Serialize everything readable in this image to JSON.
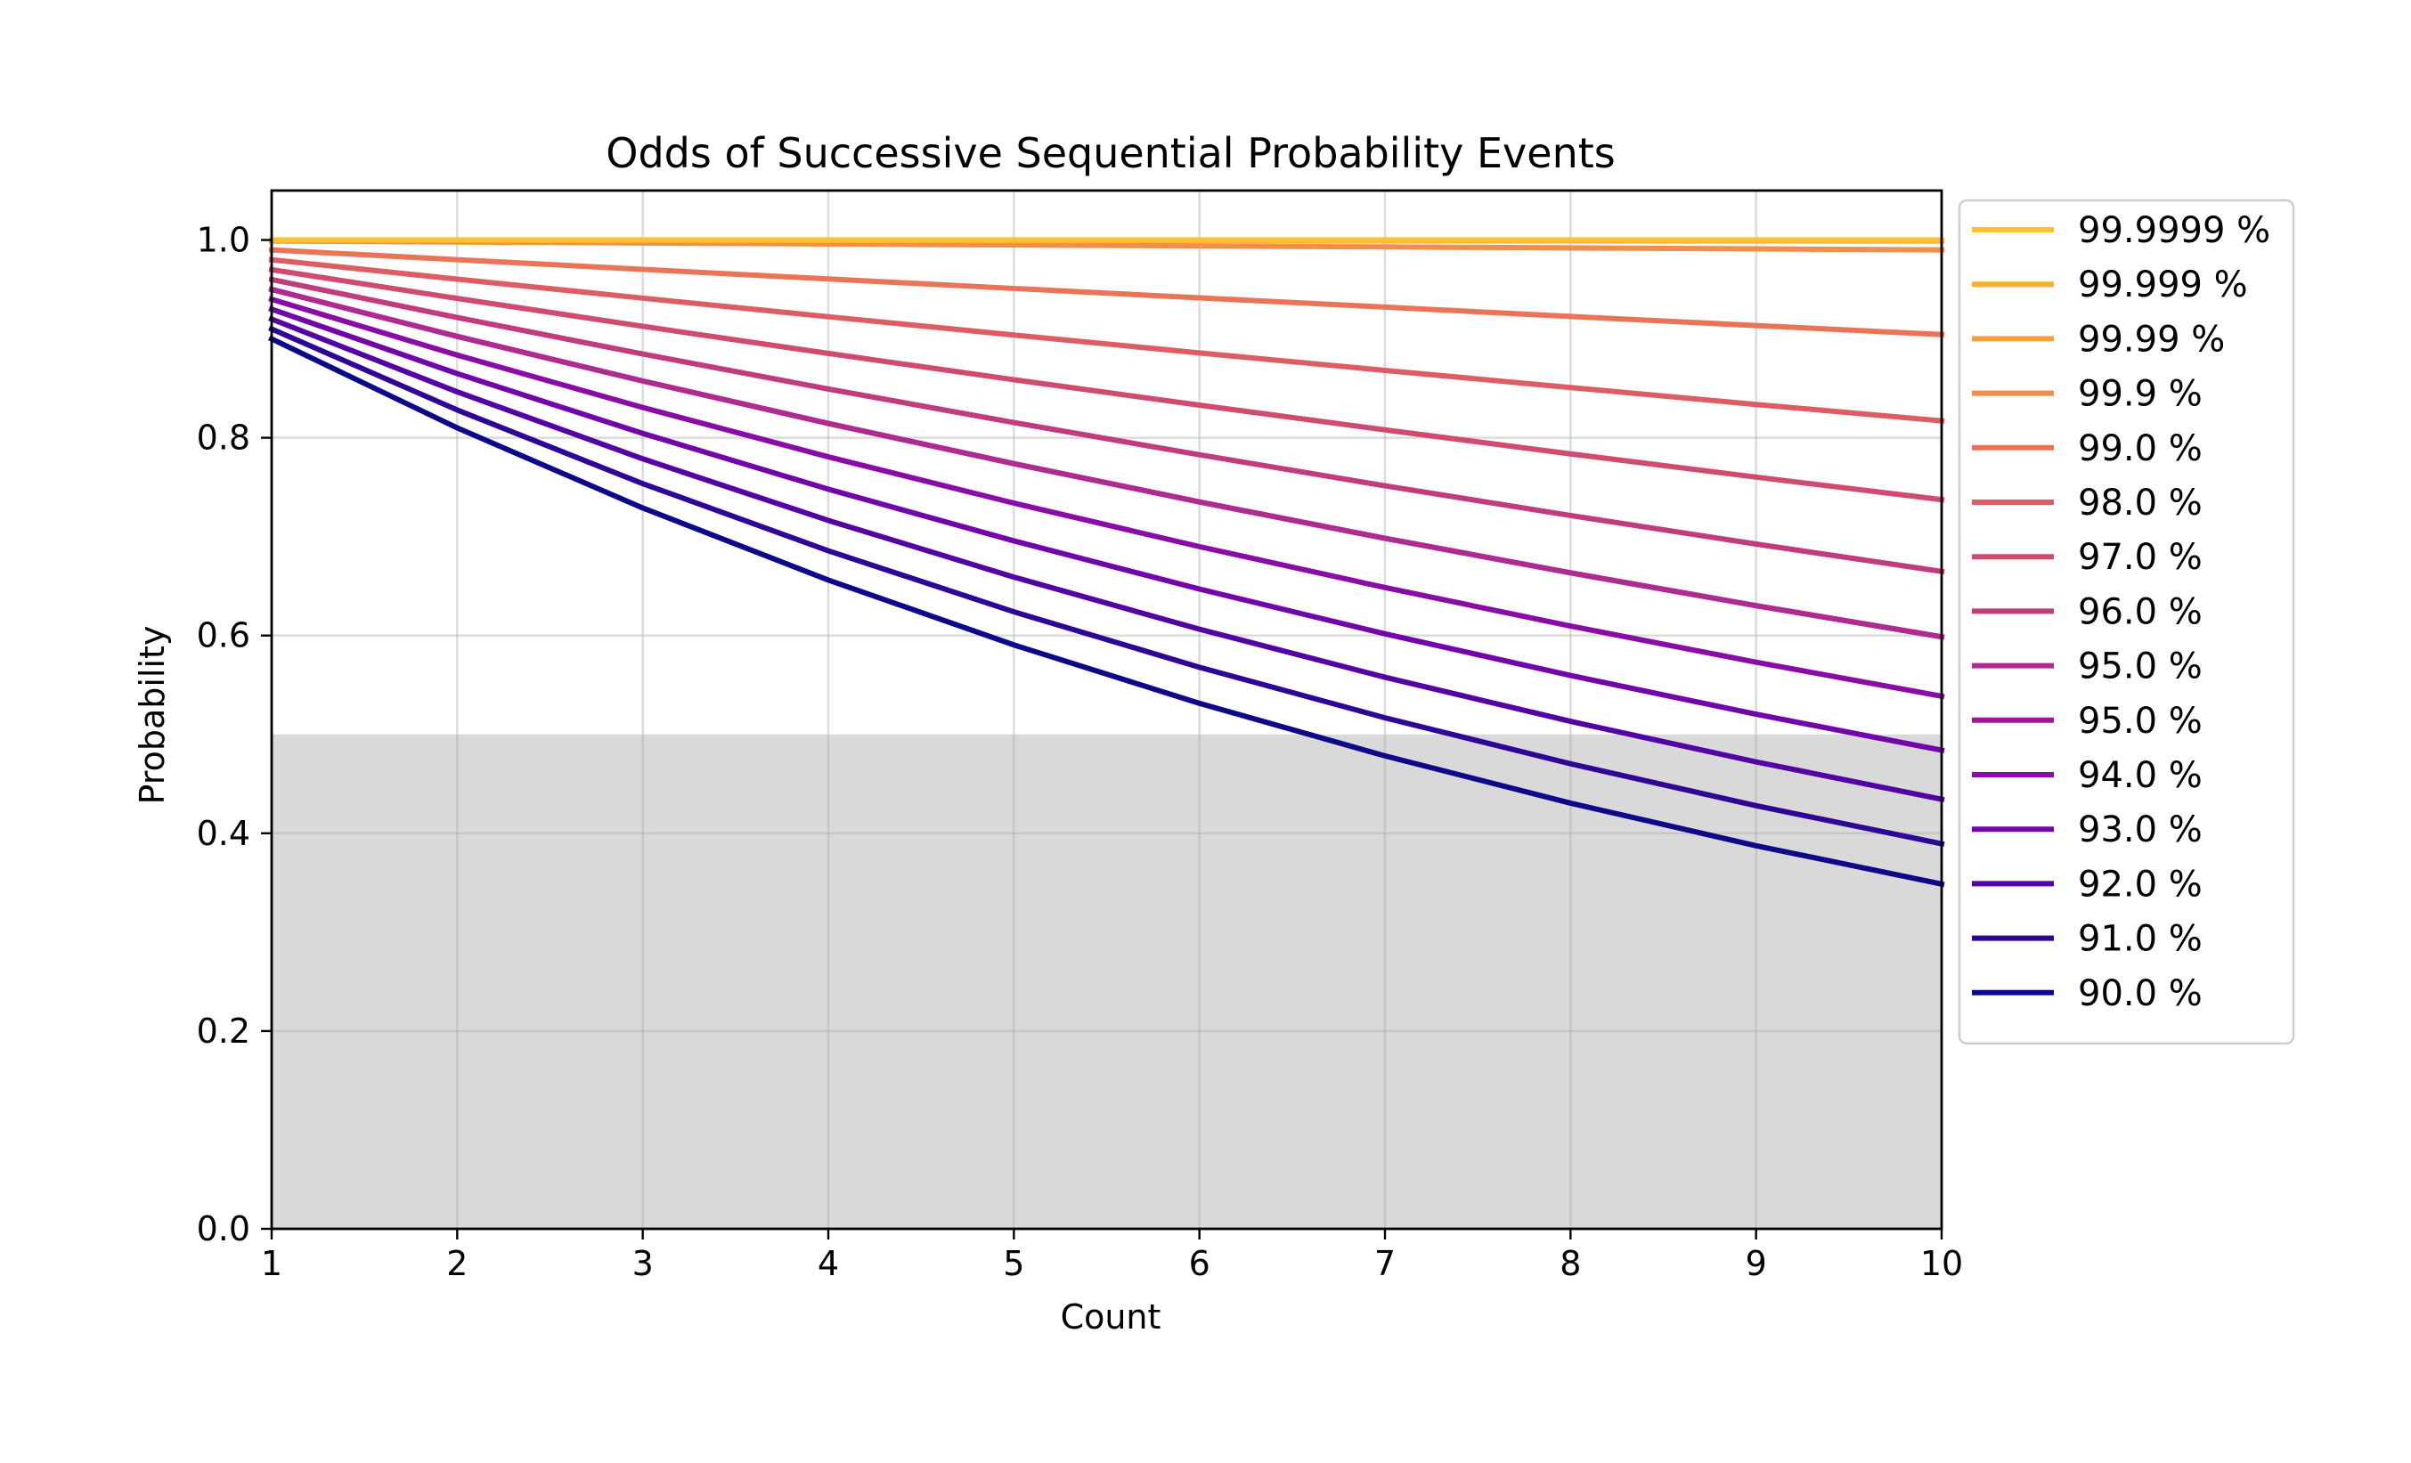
{
  "chart_data": {
    "type": "line",
    "title": "Odds of Successive Sequential Probability Events",
    "xlabel": "Count",
    "ylabel": "Probability",
    "xlim": [
      1,
      10
    ],
    "ylim": [
      0,
      1.05
    ],
    "x_ticks": [
      "1",
      "2",
      "3",
      "4",
      "5",
      "6",
      "7",
      "8",
      "9",
      "10"
    ],
    "y_ticks": [
      "0.0",
      "0.2",
      "0.4",
      "0.6",
      "0.8",
      "1.0"
    ],
    "grid": true,
    "legend_placement": "outside-right-top",
    "shaded_region": {
      "y_from": 0,
      "y_to": 0.5,
      "color": "#d9d9d9"
    },
    "x": [
      1,
      2,
      3,
      4,
      5,
      6,
      7,
      8,
      9,
      10
    ],
    "series": [
      {
        "name": "99.9999 %",
        "color": "#f9c22e",
        "values": [
          0.999999,
          0.999998,
          0.999997,
          0.999996,
          0.999995,
          0.999994,
          0.999993,
          0.999992,
          0.999991,
          0.99999
        ]
      },
      {
        "name": "99.999 %",
        "color": "#fbb02d",
        "values": [
          0.99999,
          0.99998,
          0.99997,
          0.99996,
          0.99995,
          0.99994,
          0.99993,
          0.99992,
          0.99991,
          0.9999
        ]
      },
      {
        "name": "99.99 %",
        "color": "#f89f3c",
        "values": [
          0.9999,
          0.9998,
          0.9997,
          0.9996,
          0.9995,
          0.9994,
          0.9993,
          0.9992,
          0.9991,
          0.999
        ]
      },
      {
        "name": "99.9 %",
        "color": "#f28e4b",
        "values": [
          0.999,
          0.998,
          0.997,
          0.996,
          0.995,
          0.994,
          0.993,
          0.992,
          0.991,
          0.99
        ]
      },
      {
        "name": "99.0 %",
        "color": "#e97457",
        "values": [
          0.99,
          0.9801,
          0.9703,
          0.9606,
          0.951,
          0.9415,
          0.9321,
          0.9227,
          0.9135,
          0.9044
        ]
      },
      {
        "name": "98.0 %",
        "color": "#dc5d63",
        "values": [
          0.98,
          0.9604,
          0.9412,
          0.9224,
          0.9039,
          0.8858,
          0.8681,
          0.8508,
          0.8337,
          0.8171
        ]
      },
      {
        "name": "97.0 %",
        "color": "#cf4b6f",
        "values": [
          0.97,
          0.9409,
          0.9127,
          0.8853,
          0.8587,
          0.833,
          0.808,
          0.7837,
          0.7602,
          0.7374
        ]
      },
      {
        "name": "96.0 %",
        "color": "#c13c7d",
        "values": [
          0.96,
          0.9216,
          0.8847,
          0.8493,
          0.8154,
          0.7828,
          0.7514,
          0.7214,
          0.6925,
          0.6648
        ]
      },
      {
        "name": "95.0 %",
        "color": "#ae2b90",
        "values": [
          0.95,
          0.9025,
          0.8574,
          0.8145,
          0.7738,
          0.7351,
          0.6983,
          0.6634,
          0.6302,
          0.5987
        ]
      },
      {
        "name": "95.0 %",
        "color": "#9c179e",
        "values": [
          0.95,
          0.9025,
          0.8574,
          0.8145,
          0.7738,
          0.7351,
          0.6983,
          0.6634,
          0.6302,
          0.5987
        ]
      },
      {
        "name": "94.0 %",
        "color": "#8a0ca7",
        "values": [
          0.94,
          0.8836,
          0.8306,
          0.7807,
          0.7339,
          0.6899,
          0.6485,
          0.6096,
          0.573,
          0.5386
        ]
      },
      {
        "name": "93.0 %",
        "color": "#7105a9",
        "values": [
          0.93,
          0.8649,
          0.8044,
          0.748,
          0.6957,
          0.647,
          0.6017,
          0.5596,
          0.5204,
          0.484
        ]
      },
      {
        "name": "92.0 %",
        "color": "#5302a3",
        "values": [
          0.92,
          0.8464,
          0.7787,
          0.7164,
          0.6591,
          0.6064,
          0.5578,
          0.5132,
          0.4722,
          0.4344
        ]
      },
      {
        "name": "91.0 %",
        "color": "#2f0596",
        "values": [
          0.91,
          0.8281,
          0.7536,
          0.6857,
          0.624,
          0.5679,
          0.5168,
          0.4703,
          0.4279,
          0.3894
        ]
      },
      {
        "name": "90.0 %",
        "color": "#0d0887",
        "values": [
          0.9,
          0.81,
          0.729,
          0.6561,
          0.5905,
          0.5314,
          0.4783,
          0.4305,
          0.3874,
          0.3487
        ]
      }
    ]
  }
}
